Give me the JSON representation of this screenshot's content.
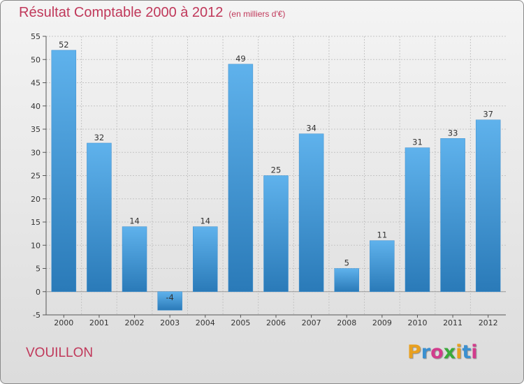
{
  "title": "Résultat Comptable 2000 à 2012",
  "title_unit": "(en milliers d'€)",
  "town": "VOUILLON",
  "logo": {
    "letters": [
      "P",
      "r",
      "o",
      "x",
      "i",
      "t",
      "i"
    ],
    "colors": [
      "#e8a020",
      "#3a8fd0",
      "#d23c8c",
      "#3aaa3a",
      "#e8a020",
      "#3a8fd0",
      "#d23c8c"
    ]
  },
  "colors": {
    "title": "#c0385a",
    "bar_top": "#5fb2ec",
    "bar_bottom": "#2a7ab8"
  },
  "chart_data": {
    "type": "bar",
    "title": "Résultat Comptable 2000 à 2012",
    "subtitle": "(en milliers d'€)",
    "categories": [
      "2000",
      "2001",
      "2002",
      "2003",
      "2004",
      "2005",
      "2006",
      "2007",
      "2008",
      "2009",
      "2010",
      "2011",
      "2012"
    ],
    "values": [
      52,
      32,
      14,
      -4,
      14,
      49,
      25,
      34,
      5,
      11,
      31,
      33,
      37
    ],
    "value_labels": [
      "52",
      "32",
      "14",
      "-4",
      "14",
      "49",
      "25",
      "34",
      "5",
      "11",
      "31",
      "33",
      "37"
    ],
    "ylim": [
      -5,
      55
    ],
    "yticks": [
      "-5",
      "0",
      "5",
      "10",
      "15",
      "20",
      "25",
      "30",
      "35",
      "40",
      "45",
      "50",
      "55"
    ],
    "grid": true,
    "legend": "none"
  }
}
